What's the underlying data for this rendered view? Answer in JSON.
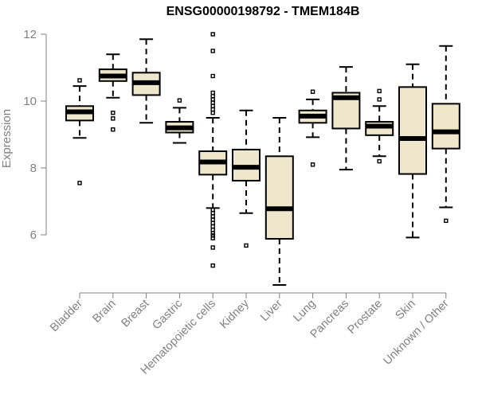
{
  "chart_data": {
    "type": "box",
    "title": "ENSG00000198792 - TMEM184B",
    "xlabel": "",
    "ylabel": "Expression",
    "ylim": [
      4.2,
      12.3
    ],
    "yticks": [
      6,
      8,
      10,
      12
    ],
    "grid": false,
    "box_fill": "#efe7cc",
    "axis_color": "#808080",
    "categories": [
      "Bladder",
      "Brain",
      "Breast",
      "Gastric",
      "Hematopoietic cells",
      "Kidney",
      "Liver",
      "Lung",
      "Pancreas",
      "Prostate",
      "Skin",
      "Unknown / Other"
    ],
    "boxes": [
      {
        "min": 8.9,
        "q1": 9.42,
        "median": 9.68,
        "q3": 9.85,
        "max": 10.45,
        "outliers": [
          10.62,
          7.55
        ]
      },
      {
        "min": 10.1,
        "q1": 10.6,
        "median": 10.75,
        "q3": 10.95,
        "max": 11.4,
        "outliers": [
          9.65,
          9.48,
          9.15
        ]
      },
      {
        "min": 9.35,
        "q1": 10.18,
        "median": 10.55,
        "q3": 10.85,
        "max": 11.85,
        "outliers": []
      },
      {
        "min": 8.75,
        "q1": 9.06,
        "median": 9.2,
        "q3": 9.38,
        "max": 9.8,
        "outliers": [
          10.02
        ]
      },
      {
        "min": 6.8,
        "q1": 7.8,
        "median": 8.18,
        "q3": 8.5,
        "max": 9.5,
        "outliers": [
          12.0,
          11.5,
          10.75,
          10.25,
          10.15,
          10.05,
          9.95,
          9.85,
          9.75,
          9.65,
          6.75,
          6.65,
          6.55,
          6.45,
          6.35,
          6.25,
          6.15,
          6.05,
          5.98,
          5.9,
          5.62,
          5.08
        ]
      },
      {
        "min": 6.65,
        "q1": 7.62,
        "median": 8.02,
        "q3": 8.55,
        "max": 9.72,
        "outliers": [
          5.68
        ]
      },
      {
        "min": 4.5,
        "q1": 5.88,
        "median": 6.78,
        "q3": 8.35,
        "max": 9.5,
        "outliers": []
      },
      {
        "min": 8.92,
        "q1": 9.35,
        "median": 9.55,
        "q3": 9.72,
        "max": 10.05,
        "outliers": [
          10.28,
          8.1
        ]
      },
      {
        "min": 7.95,
        "q1": 9.18,
        "median": 10.1,
        "q3": 10.25,
        "max": 11.02,
        "outliers": []
      },
      {
        "min": 8.35,
        "q1": 8.98,
        "median": 9.25,
        "q3": 9.38,
        "max": 9.85,
        "outliers": [
          10.3,
          10.05,
          8.2
        ]
      },
      {
        "min": 5.92,
        "q1": 7.82,
        "median": 8.88,
        "q3": 10.42,
        "max": 11.1,
        "outliers": []
      },
      {
        "min": 6.82,
        "q1": 8.58,
        "median": 9.08,
        "q3": 9.92,
        "max": 11.65,
        "outliers": [
          6.42
        ]
      }
    ]
  }
}
